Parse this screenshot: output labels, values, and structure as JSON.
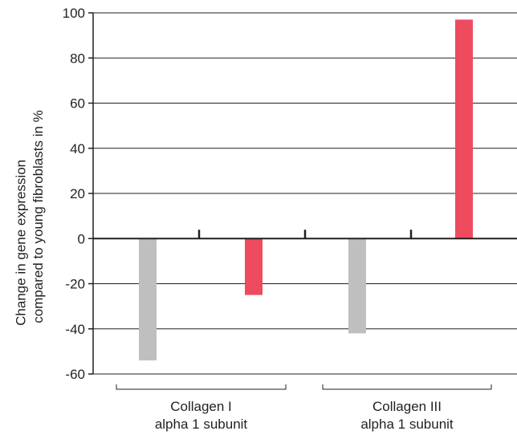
{
  "chart_data": {
    "type": "bar",
    "title": "",
    "ylabel_lines": [
      "Change in gene expression",
      "compared to young fibroblasts in %"
    ],
    "ylim": [
      -60,
      100
    ],
    "yticks": [
      100,
      80,
      60,
      40,
      20,
      0,
      -20,
      -40,
      -60
    ],
    "grid": true,
    "legend": "none",
    "groups": [
      {
        "label_lines": [
          "Collagen I",
          "alpha 1 subunit"
        ],
        "bars": [
          {
            "value": -54,
            "color": "#bfbfbf"
          },
          {
            "value": -25,
            "color": "#ee4b5f"
          }
        ]
      },
      {
        "label_lines": [
          "Collagen III",
          "alpha 1 subunit"
        ],
        "bars": [
          {
            "value": -42,
            "color": "#bfbfbf"
          },
          {
            "value": 97,
            "color": "#ee4b5f"
          }
        ]
      }
    ]
  }
}
